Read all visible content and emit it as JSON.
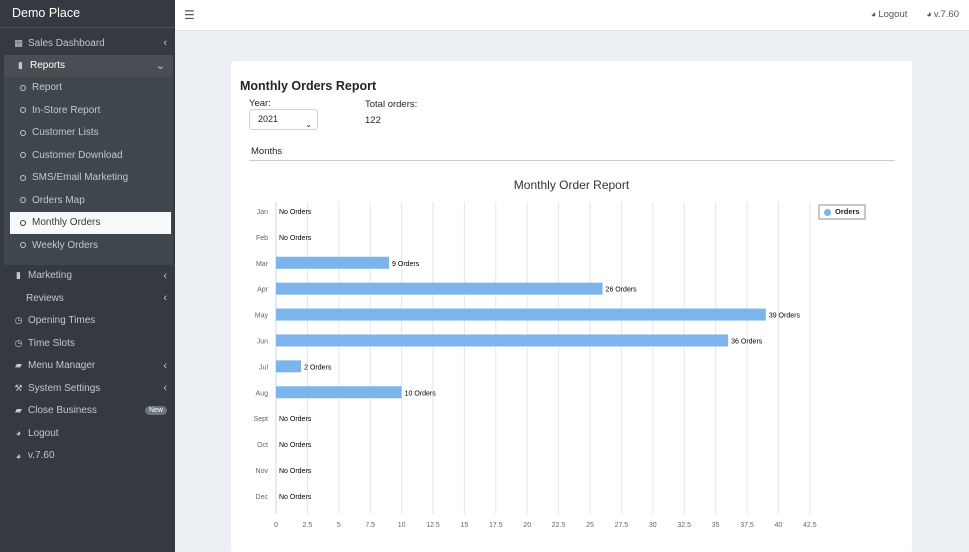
{
  "sidebar": {
    "brand": "Demo Place",
    "sales_dashboard": "Sales Dashboard",
    "reports": "Reports",
    "report_items": [
      "Report",
      "In-Store Report",
      "Customer Lists",
      "Customer Download",
      "SMS/Email Marketing",
      "Orders Map",
      "Monthly Orders",
      "Weekly Orders"
    ],
    "active_item": "Monthly Orders",
    "marketing": "Marketing",
    "reviews": "Reviews",
    "opening_times": "Opening Times",
    "time_slots": "Time Slots",
    "menu_manager": "Menu Manager",
    "system_settings": "System Settings",
    "close_business": "Close Business",
    "new_badge": "New",
    "logout": "Logout",
    "version": "v.7.60"
  },
  "topbar": {
    "menu_icon": "hamburger-icon",
    "logout": "Logout",
    "version": "v.7.60"
  },
  "report": {
    "title": "Monthly Orders Report",
    "year_label": "Year:",
    "year_value": "2021",
    "total_label": "Total orders:",
    "total_value": "122",
    "tab_label": "Months"
  },
  "chart_data": {
    "type": "bar",
    "orientation": "horizontal",
    "title": "Monthly Order Report",
    "categories": [
      "Jan",
      "Feb",
      "Mar",
      "Apr",
      "May",
      "Jun",
      "Jul",
      "Aug",
      "Sept",
      "Oct",
      "Nov",
      "Dec"
    ],
    "series": [
      {
        "name": "Orders",
        "values": [
          0,
          0,
          9,
          26,
          39,
          36,
          2,
          10,
          0,
          0,
          0,
          0
        ],
        "color": "#7cb5ec"
      }
    ],
    "data_labels": [
      "No Orders",
      "No Orders",
      "9 Orders",
      "26 Orders",
      "39 Orders",
      "36 Orders",
      "2 Orders",
      "10 Orders",
      "No Orders",
      "No Orders",
      "No Orders",
      "No Orders"
    ],
    "x_ticks": [
      "0",
      "2.5",
      "5",
      "7.5",
      "10",
      "12.5",
      "15",
      "17.5",
      "20",
      "22.5",
      "25",
      "27.5",
      "30",
      "32.5",
      "35",
      "37.5",
      "40",
      "42.5"
    ],
    "xlim": [
      0,
      42.5
    ],
    "grid": true,
    "legend_position": "top-right"
  }
}
